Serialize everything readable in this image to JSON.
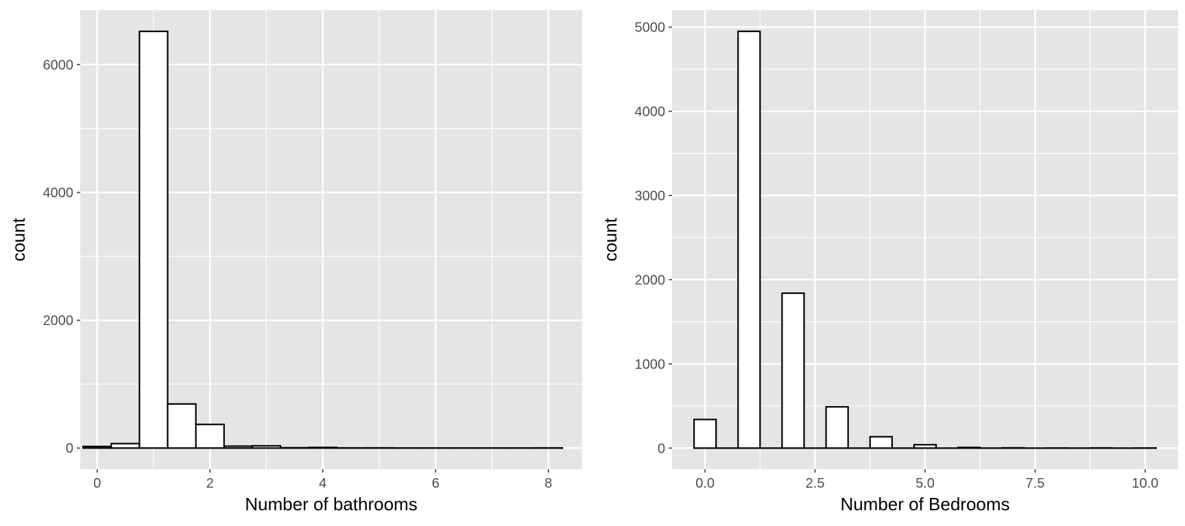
{
  "chart_data": [
    {
      "type": "bar",
      "title": "",
      "xlabel": "Number of bathrooms",
      "ylabel": "count",
      "xlim": [
        -0.3,
        8.6
      ],
      "ylim": [
        -330,
        6850
      ],
      "x_ticks": [
        0,
        2,
        4,
        6,
        8
      ],
      "x_tick_labels": [
        "0",
        "2",
        "4",
        "6",
        "8"
      ],
      "y_ticks": [
        0,
        2000,
        4000,
        6000
      ],
      "y_tick_labels": [
        "0",
        "2000",
        "4000",
        "6000"
      ],
      "bin_width": 0.5,
      "bins": [
        {
          "x": 0.0,
          "count": 25
        },
        {
          "x": 0.5,
          "count": 70
        },
        {
          "x": 1.0,
          "count": 6520
        },
        {
          "x": 1.5,
          "count": 690
        },
        {
          "x": 2.0,
          "count": 370
        },
        {
          "x": 2.5,
          "count": 30
        },
        {
          "x": 3.0,
          "count": 35
        },
        {
          "x": 3.5,
          "count": 5
        },
        {
          "x": 4.0,
          "count": 10
        },
        {
          "x": 4.5,
          "count": 2
        },
        {
          "x": 5.0,
          "count": 3
        },
        {
          "x": 5.5,
          "count": 1
        },
        {
          "x": 6.0,
          "count": 1
        },
        {
          "x": 6.5,
          "count": 1
        },
        {
          "x": 7.0,
          "count": 1
        },
        {
          "x": 7.5,
          "count": 1
        },
        {
          "x": 8.0,
          "count": 2
        }
      ],
      "grid": true,
      "fill_color": "#ffffff",
      "outline_color": "#000000",
      "panel_color": "#e5e5e5",
      "grid_color": "#ffffff"
    },
    {
      "type": "bar",
      "title": "",
      "xlabel": "Number of Bedrooms",
      "ylabel": "count",
      "xlim": [
        -0.75,
        10.75
      ],
      "ylim": [
        -250,
        5200
      ],
      "x_ticks": [
        0,
        2.5,
        5,
        7.5,
        10
      ],
      "x_tick_labels": [
        "0.0",
        "2.5",
        "5.0",
        "7.5",
        "10.0"
      ],
      "y_ticks": [
        0,
        1000,
        2000,
        3000,
        4000,
        5000
      ],
      "y_tick_labels": [
        "0",
        "1000",
        "2000",
        "3000",
        "4000",
        "5000"
      ],
      "bin_width": 0.5,
      "bins": [
        {
          "x": 0,
          "count": 340
        },
        {
          "x": 0.5,
          "count": 0
        },
        {
          "x": 1,
          "count": 4950
        },
        {
          "x": 1.5,
          "count": 0
        },
        {
          "x": 2,
          "count": 1840
        },
        {
          "x": 2.5,
          "count": 0
        },
        {
          "x": 3,
          "count": 490
        },
        {
          "x": 3.5,
          "count": 0
        },
        {
          "x": 4,
          "count": 135
        },
        {
          "x": 4.5,
          "count": 0
        },
        {
          "x": 5,
          "count": 40
        },
        {
          "x": 5.5,
          "count": 0
        },
        {
          "x": 6,
          "count": 8
        },
        {
          "x": 6.5,
          "count": 0
        },
        {
          "x": 7,
          "count": 3
        },
        {
          "x": 7.5,
          "count": 0
        },
        {
          "x": 8,
          "count": 1
        },
        {
          "x": 8.5,
          "count": 0
        },
        {
          "x": 9,
          "count": 2
        },
        {
          "x": 9.5,
          "count": 0
        },
        {
          "x": 10,
          "count": 1
        }
      ],
      "grid": true,
      "fill_color": "#ffffff",
      "outline_color": "#000000",
      "panel_color": "#e5e5e5",
      "grid_color": "#ffffff"
    }
  ]
}
